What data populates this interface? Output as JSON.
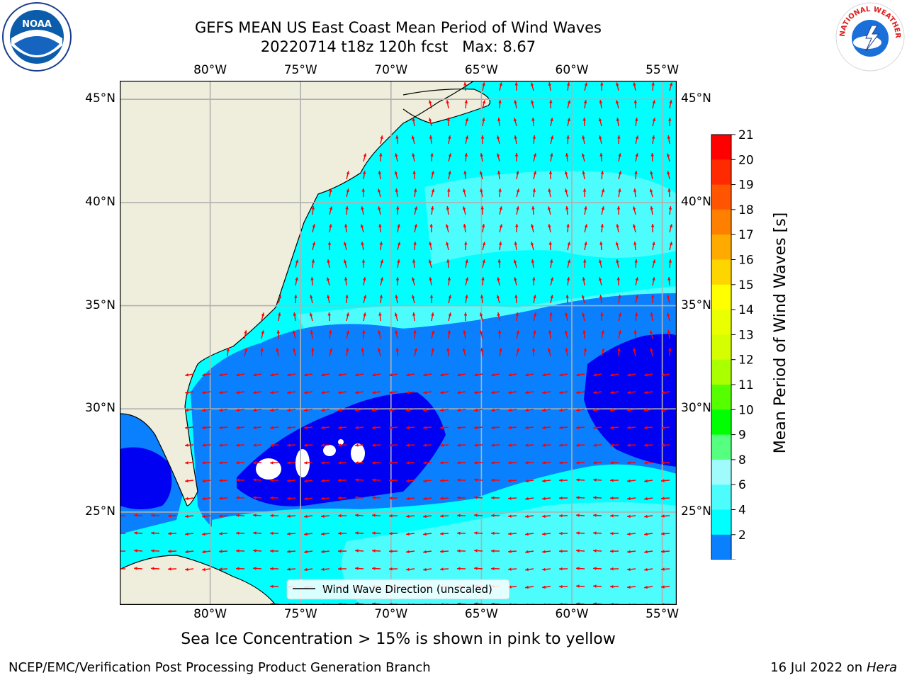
{
  "title": {
    "line1": "GEFS MEAN US East Coast Mean Period of Wind Waves",
    "line2": "20220714 t18z 120h fcst   Max: 8.67"
  },
  "map": {
    "lon_ticks": [
      "80°W",
      "75°W",
      "70°W",
      "65°W",
      "60°W",
      "55°W"
    ],
    "lat_ticks": [
      "45°N",
      "40°N",
      "35°N",
      "30°N",
      "25°N"
    ],
    "legend_label": "Wind Wave Direction (unscaled)",
    "colors": {
      "land": "#efeedc",
      "level_2_4": "#0a80fe",
      "level_4_6": "#00ffff",
      "level_6_8": "#4dfdfd",
      "level_8_9": "#a0fcfc",
      "below_2": "#0000f3",
      "arrow": "#ff0000"
    }
  },
  "colorbar": {
    "label": "Mean Period of Wind Waves [s]",
    "ticks": [
      "21",
      "20",
      "19",
      "18",
      "17",
      "16",
      "15",
      "14",
      "13",
      "12",
      "11",
      "10",
      "9",
      "8",
      "6",
      "4",
      "2"
    ],
    "colors": [
      "#ff0000",
      "#ff2a00",
      "#ff5500",
      "#ff8000",
      "#ffaa00",
      "#ffd500",
      "#ffff00",
      "#eaff00",
      "#d5ff00",
      "#aaff00",
      "#55ff00",
      "#00ff00",
      "#55ff80",
      "#a0fcfc",
      "#4dfdfd",
      "#00ffff",
      "#0a80fe"
    ],
    "under_color": "#0000f3"
  },
  "logos": {
    "noaa": "NOAA",
    "nws_text": "NATIONAL WEATHER SERVICE"
  },
  "note": "Sea Ice Concentration > 15% is shown in pink to yellow",
  "footer": {
    "left": "NCEP/EMC/Verification Post Processing Product Generation Branch",
    "right_date": "16 Jul 2022 on ",
    "right_machine": "Hera"
  }
}
